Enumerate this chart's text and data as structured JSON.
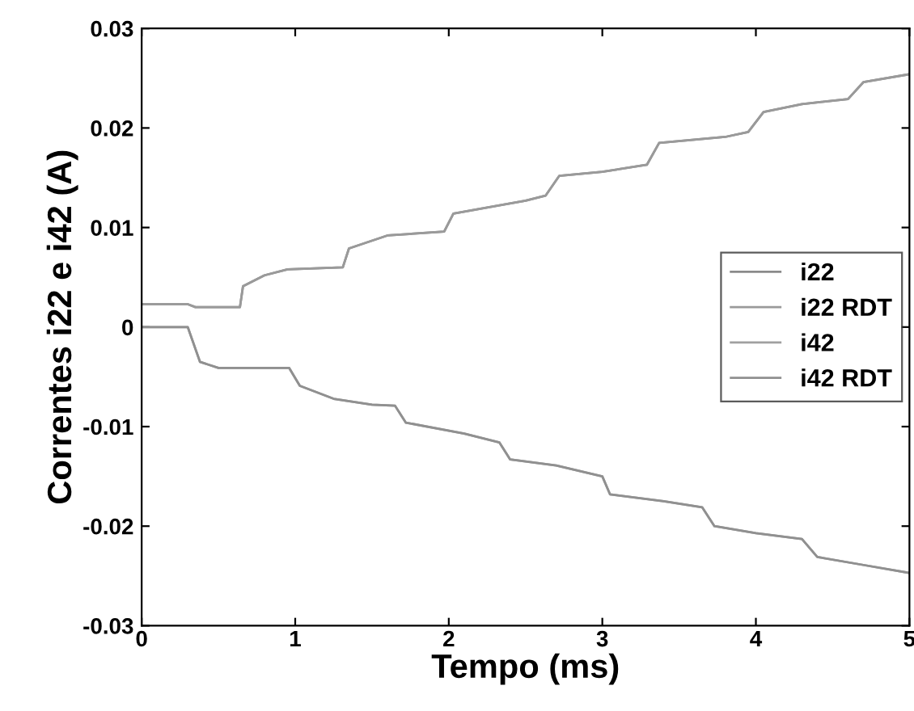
{
  "chart_data": {
    "type": "line",
    "xlabel": "Tempo (ms)",
    "ylabel": "Correntes i22 e i42 (A)",
    "xlim": [
      0,
      5
    ],
    "xticks": [
      0,
      1,
      2,
      3,
      4,
      5
    ],
    "ylim": [
      -0.03,
      0.03
    ],
    "yticks": [
      {
        "value": -0.03,
        "label": "-0.03"
      },
      {
        "value": -0.02,
        "label": "-0.02"
      },
      {
        "value": -0.01,
        "label": "-0.01"
      },
      0,
      0.01,
      0.02,
      0.03
    ],
    "grid": false,
    "legend": "right",
    "marker": "none",
    "line_style": "solid",
    "series": [
      {
        "name": "i22",
        "color": "#8a8a8a",
        "x": [
          0,
          0.3,
          0.35,
          0.64,
          0.66,
          0.8,
          0.95,
          1.31,
          1.35,
          1.6,
          1.97,
          2.03,
          2.5,
          2.63,
          2.72,
          3.0,
          3.29,
          3.37,
          3.8,
          3.95,
          4.05,
          4.3,
          4.6,
          4.7,
          5
        ],
        "values": [
          0.0023,
          0.0023,
          0.002,
          0.002,
          0.0041,
          0.0052,
          0.0058,
          0.006,
          0.0079,
          0.0092,
          0.0096,
          0.0114,
          0.0127,
          0.0132,
          0.0152,
          0.0156,
          0.0163,
          0.0185,
          0.0191,
          0.0196,
          0.0216,
          0.0224,
          0.0229,
          0.0246,
          0.0254
        ]
      },
      {
        "name": "i22 RDT",
        "color": "#9a9a9a",
        "x": [
          0,
          0.3,
          0.35,
          0.64,
          0.66,
          0.8,
          0.95,
          1.31,
          1.35,
          1.6,
          1.97,
          2.03,
          2.5,
          2.63,
          2.72,
          3.0,
          3.29,
          3.37,
          3.8,
          3.95,
          4.05,
          4.3,
          4.6,
          4.7,
          5
        ],
        "values": [
          0.0023,
          0.0023,
          0.002,
          0.002,
          0.0041,
          0.0052,
          0.0058,
          0.006,
          0.0079,
          0.0092,
          0.0096,
          0.0114,
          0.0127,
          0.0132,
          0.0152,
          0.0156,
          0.0163,
          0.0185,
          0.0191,
          0.0196,
          0.0216,
          0.0224,
          0.0229,
          0.0246,
          0.0254
        ]
      },
      {
        "name": "i42",
        "color": "#a0a0a0",
        "x": [
          0,
          0.3,
          0.38,
          0.5,
          0.96,
          1.03,
          1.25,
          1.5,
          1.65,
          1.72,
          2.1,
          2.33,
          2.4,
          2.7,
          3.0,
          3.05,
          3.4,
          3.65,
          3.73,
          4.0,
          4.3,
          4.4,
          4.7,
          5
        ],
        "values": [
          0,
          0,
          -0.0035,
          -0.0041,
          -0.0041,
          -0.0059,
          -0.0072,
          -0.0078,
          -0.0079,
          -0.0096,
          -0.0107,
          -0.0116,
          -0.0133,
          -0.0139,
          -0.015,
          -0.0168,
          -0.0175,
          -0.0181,
          -0.02,
          -0.0207,
          -0.0213,
          -0.0231,
          -0.0239,
          -0.0247
        ]
      },
      {
        "name": "i42 RDT",
        "color": "#909090",
        "x": [
          0,
          0.3,
          0.38,
          0.5,
          0.96,
          1.03,
          1.25,
          1.5,
          1.65,
          1.72,
          2.1,
          2.33,
          2.4,
          2.7,
          3.0,
          3.05,
          3.4,
          3.65,
          3.73,
          4.0,
          4.3,
          4.4,
          4.7,
          5
        ],
        "values": [
          0,
          0,
          -0.0035,
          -0.0041,
          -0.0041,
          -0.0059,
          -0.0072,
          -0.0078,
          -0.0079,
          -0.0096,
          -0.0107,
          -0.0116,
          -0.0133,
          -0.0139,
          -0.015,
          -0.0168,
          -0.0175,
          -0.0181,
          -0.02,
          -0.0207,
          -0.0213,
          -0.0231,
          -0.0239,
          -0.0247
        ]
      }
    ]
  }
}
